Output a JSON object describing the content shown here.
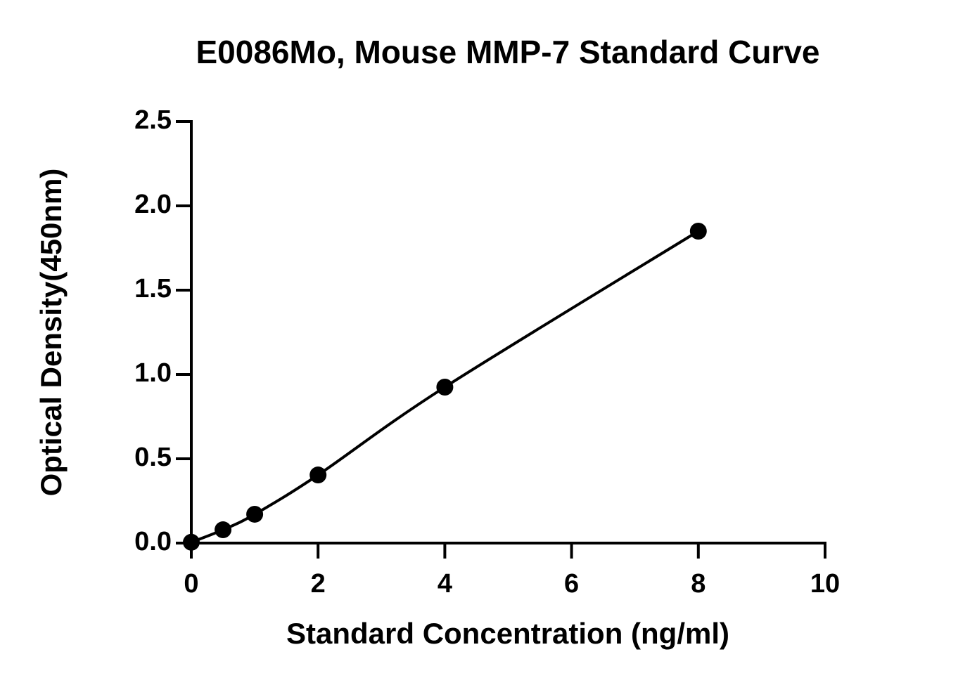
{
  "chart_data": {
    "type": "scatter",
    "title": "E0086Mo, Mouse MMP-7 Standard Curve",
    "x_label": "Standard Concentration (ng/ml)",
    "y_label": "Optical Density(450nm)",
    "x": [
      0,
      0.5,
      1,
      2,
      4,
      8
    ],
    "values": [
      0.005,
      0.079,
      0.171,
      0.404,
      0.925,
      1.85
    ],
    "color": "#000000",
    "curve": true,
    "xlim": [
      0,
      10
    ],
    "xticks": [
      0,
      2,
      4,
      6,
      8,
      10
    ],
    "ylim": [
      0,
      2.5
    ],
    "yticks": [
      {
        "value": 0,
        "label": "0.0"
      },
      0.5,
      {
        "value": 1,
        "label": "1.0"
      },
      1.5,
      {
        "value": 2,
        "label": "2.0"
      },
      2.5
    ]
  }
}
